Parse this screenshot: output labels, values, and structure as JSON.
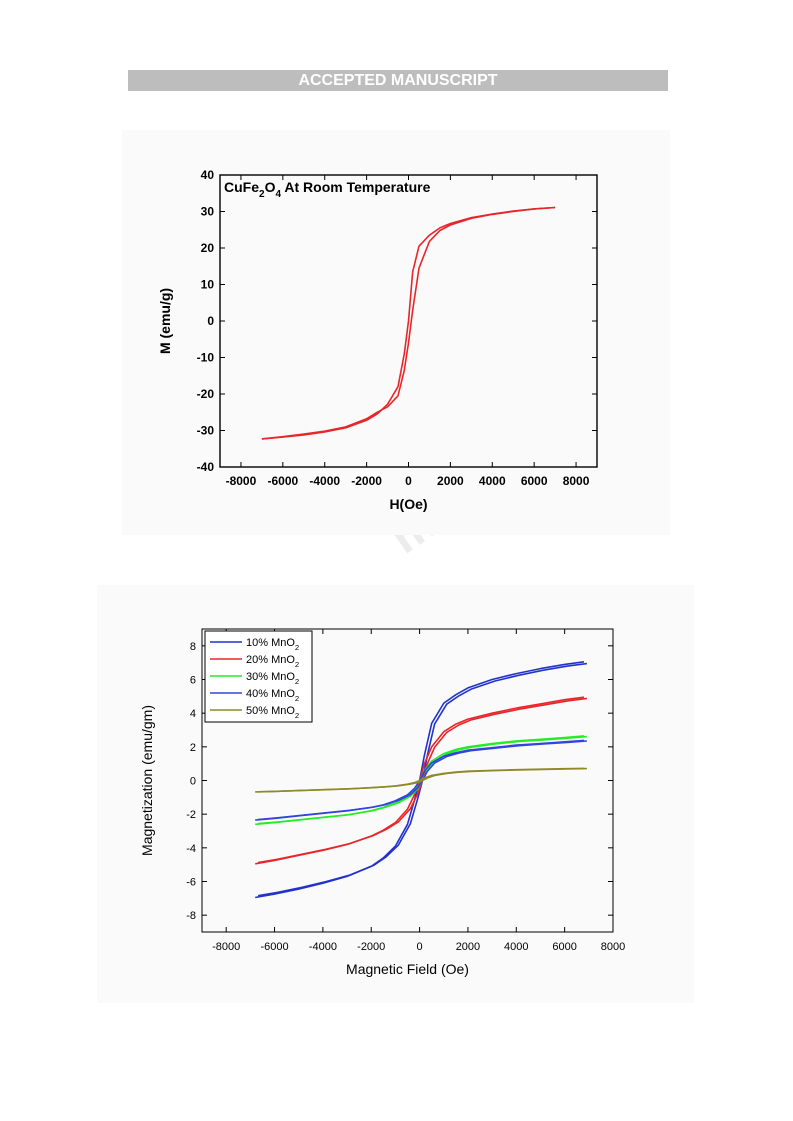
{
  "banner": "ACCEPTED MANUSCRIPT",
  "watermark": "ma",
  "chart_data": [
    {
      "type": "line",
      "title": "CuFe2O4 At Room Temperature",
      "title_parts": {
        "base1": "CuFe",
        "sub1": "2",
        "base2": "O",
        "sub2": "4",
        "rest": " At Room Temperature"
      },
      "xlabel": "H(Oe)",
      "ylabel": "M (emu/g)",
      "xlim": [
        -9000,
        9000
      ],
      "ylim": [
        -40,
        40
      ],
      "xticks": [
        -8000,
        -6000,
        -4000,
        -2000,
        0,
        2000,
        4000,
        6000,
        8000
      ],
      "yticks": [
        -40,
        -30,
        -20,
        -10,
        0,
        10,
        20,
        30,
        40
      ],
      "grid": false,
      "series": [
        {
          "color": "#e8262a",
          "x": [
            -7000,
            -6000,
            -5000,
            -4000,
            -3000,
            -2000,
            -1500,
            -1000,
            -500,
            -200,
            0,
            200,
            500,
            1000,
            1500,
            2000,
            3000,
            4000,
            5000,
            6000,
            7000
          ],
          "y_descending": [
            -32.3,
            -31.8,
            -31.2,
            -30.4,
            -29.3,
            -27.2,
            -25.5,
            -22.8,
            -18.0,
            -9.0,
            0,
            13.5,
            20.5,
            23.5,
            25.5,
            26.7,
            28.3,
            29.3,
            30.1,
            30.7,
            31.1
          ],
          "y_ascending": [
            -32.3,
            -31.7,
            -31.0,
            -30.2,
            -29.0,
            -26.8,
            -25.0,
            -23.5,
            -20.5,
            -13.5,
            -6.0,
            3.0,
            14.5,
            21.8,
            24.8,
            26.3,
            28.1,
            29.2,
            30.0,
            30.7,
            31.1
          ]
        }
      ]
    },
    {
      "type": "line",
      "xlabel": "Magnetic Field (Oe)",
      "ylabel": "Magnetization (emu/gm)",
      "xlim": [
        -9000,
        8000
      ],
      "ylim": [
        -9,
        9
      ],
      "xticks": [
        -8000,
        -6000,
        -4000,
        -2000,
        0,
        2000,
        4000,
        6000,
        8000
      ],
      "yticks": [
        -8,
        -6,
        -4,
        -2,
        0,
        2,
        4,
        6,
        8
      ],
      "grid": false,
      "legend": "top-left",
      "x": [
        -6800,
        -6000,
        -5000,
        -4000,
        -3000,
        -2000,
        -1500,
        -1000,
        -500,
        -200,
        0,
        200,
        500,
        1000,
        1500,
        2000,
        3000,
        4000,
        5000,
        6000,
        6800
      ],
      "series": [
        {
          "name": "10% MnO2",
          "label_base": "10% MnO",
          "label_sub": "2",
          "color": "#2233cc",
          "y": [
            -6.95,
            -6.75,
            -6.45,
            -6.1,
            -5.7,
            -5.1,
            -4.6,
            -3.9,
            -2.6,
            -1.1,
            0,
            1.5,
            3.4,
            4.6,
            5.1,
            5.5,
            6.0,
            6.35,
            6.65,
            6.9,
            7.05
          ]
        },
        {
          "name": "20% MnO2",
          "label_base": "20% MnO",
          "label_sub": "2",
          "color": "#e8262a",
          "y": [
            -4.95,
            -4.75,
            -4.45,
            -4.15,
            -3.8,
            -3.3,
            -2.95,
            -2.5,
            -1.7,
            -0.8,
            0,
            1.0,
            2.0,
            2.9,
            3.35,
            3.65,
            4.0,
            4.3,
            4.55,
            4.8,
            4.95
          ]
        },
        {
          "name": "30% MnO2",
          "label_base": "30% MnO",
          "label_sub": "2",
          "color": "#22ee22",
          "y": [
            -2.6,
            -2.5,
            -2.35,
            -2.2,
            -2.05,
            -1.8,
            -1.6,
            -1.35,
            -0.95,
            -0.5,
            0,
            0.6,
            1.15,
            1.6,
            1.85,
            2.0,
            2.2,
            2.35,
            2.45,
            2.55,
            2.65
          ]
        },
        {
          "name": "40% MnO2",
          "label_base": "40% MnO",
          "label_sub": "2",
          "color": "#3344dd",
          "y": [
            -2.35,
            -2.25,
            -2.1,
            -1.95,
            -1.8,
            -1.6,
            -1.45,
            -1.2,
            -0.85,
            -0.45,
            0,
            0.55,
            1.05,
            1.45,
            1.65,
            1.8,
            1.95,
            2.1,
            2.2,
            2.3,
            2.38
          ]
        },
        {
          "name": "50% MnO2",
          "label_base": "50% MnO",
          "label_sub": "2",
          "color": "#8f8a25",
          "y": [
            -0.68,
            -0.65,
            -0.6,
            -0.55,
            -0.5,
            -0.43,
            -0.38,
            -0.32,
            -0.22,
            -0.12,
            0,
            0.15,
            0.3,
            0.42,
            0.5,
            0.55,
            0.6,
            0.64,
            0.67,
            0.7,
            0.72
          ]
        }
      ]
    }
  ]
}
